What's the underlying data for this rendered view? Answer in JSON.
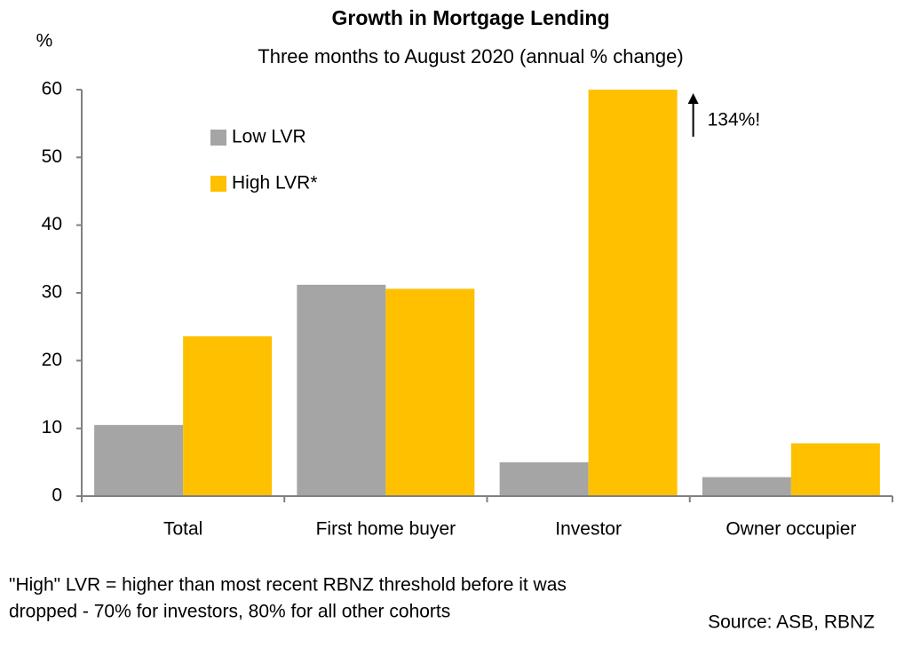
{
  "chart_data": {
    "type": "bar",
    "title": "Growth in Mortgage Lending",
    "subtitle": "Three months to August 2020 (annual % change)",
    "y_label": "%",
    "categories": [
      "Total",
      "First home buyer",
      "Investor",
      "Owner occupier"
    ],
    "series": [
      {
        "name": "Low LVR",
        "color": "#a5a5a5",
        "values": [
          10.5,
          31.2,
          5,
          2.8
        ]
      },
      {
        "name": "High LVR*",
        "color": "#ffc000",
        "values": [
          23.6,
          30.6,
          134,
          7.8
        ],
        "value_labels": [
          null,
          null,
          "134%!",
          null
        ]
      }
    ],
    "ylim": [
      0,
      60
    ],
    "yticks": [
      0,
      10,
      20,
      30,
      40,
      50,
      60
    ],
    "legend": "upper-left",
    "footnote": [
      "\"High\" LVR = higher than most recent RBNZ threshold before it was",
      "dropped - 70% for investors, 80% for all other cohorts"
    ],
    "source": "Source: ASB, RBNZ"
  }
}
